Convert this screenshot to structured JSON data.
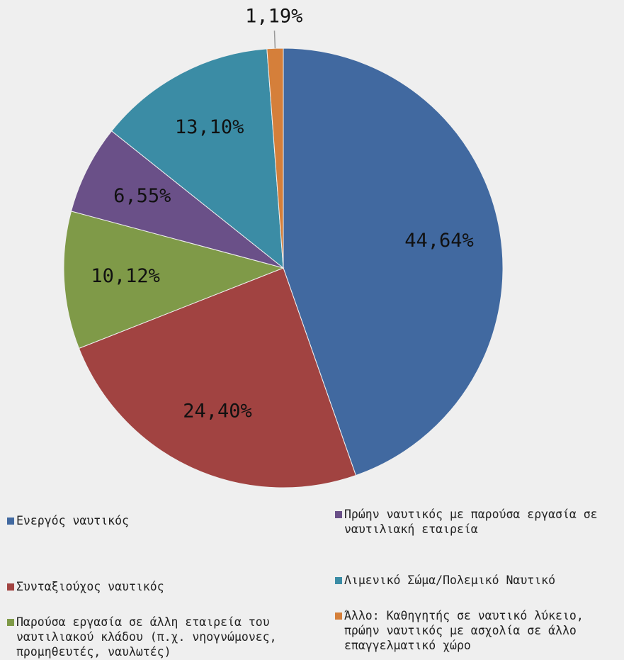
{
  "chart_data": {
    "type": "pie",
    "categories": [
      "Ενεργός ναυτικός",
      "Συνταξιούχος ναυτικός",
      "Παρούσα εργασία σε άλλη εταιρεία του ναυτιλιακού κλάδου (π.χ. νηογνώμονες, προμηθευτές, ναυλωτές)",
      "Πρώην ναυτικός με παρούσα εργασία σε ναυτιλιακή εταιρεία",
      "Λιμενικό Σώμα/Πολεμικό Ναυτικό",
      "Άλλο: Καθηγητής σε ναυτικό λύκειο, πρώην ναυτικός με ασχολία σε άλλο επαγγελματικό χώρο"
    ],
    "values": [
      44.64,
      24.4,
      10.12,
      6.55,
      13.1,
      1.19
    ],
    "value_labels": [
      "44,64%",
      "24,40%",
      "10,12%",
      "6,55%",
      "13,10%",
      "1,19%"
    ],
    "colors": [
      "#4169a0",
      "#a14341",
      "#7f9a48",
      "#6a5088",
      "#3b8ca5",
      "#d57f3a"
    ],
    "legend": "bottom"
  }
}
